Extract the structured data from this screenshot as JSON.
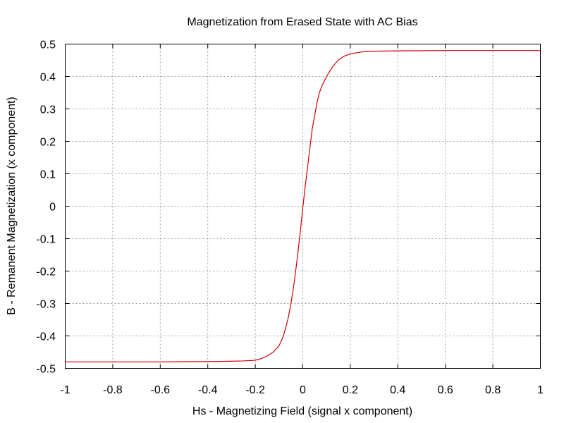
{
  "chart_data": {
    "type": "line",
    "title": "Magnetization from Erased State with AC Bias",
    "xlabel": "Hs - Magnetizing Field (signal x component)",
    "ylabel": "B - Remanent Magnetization (x component)",
    "xlim": [
      -1,
      1
    ],
    "ylim": [
      -0.5,
      0.5
    ],
    "xticks": [
      "-1",
      "-0.8",
      "-0.6",
      "-0.4",
      "-0.2",
      "0",
      "0.2",
      "0.4",
      "0.6",
      "0.8",
      "1"
    ],
    "yticks": [
      "-0.5",
      "-0.4",
      "-0.3",
      "-0.2",
      "-0.1",
      "0",
      "0.1",
      "0.2",
      "0.3",
      "0.4",
      "0.5"
    ],
    "grid": true,
    "legend": "none",
    "series": [
      {
        "color": "#cc0000",
        "x": [
          -1,
          -0.8,
          -0.6,
          -0.4,
          -0.3,
          -0.25,
          -0.2,
          -0.175,
          -0.15,
          -0.125,
          -0.1,
          -0.09,
          -0.08,
          -0.07,
          -0.06,
          -0.05,
          -0.04,
          -0.03,
          -0.02,
          -0.01,
          0,
          0.01,
          0.02,
          0.03,
          0.04,
          0.05,
          0.06,
          0.07,
          0.08,
          0.09,
          0.1,
          0.125,
          0.15,
          0.175,
          0.2,
          0.25,
          0.3,
          0.4,
          0.6,
          0.8,
          1
        ],
        "y": [
          -0.48,
          -0.48,
          -0.48,
          -0.479,
          -0.478,
          -0.477,
          -0.475,
          -0.47,
          -0.462,
          -0.45,
          -0.43,
          -0.415,
          -0.395,
          -0.37,
          -0.34,
          -0.3,
          -0.255,
          -0.2,
          -0.14,
          -0.075,
          -0.005,
          0.06,
          0.12,
          0.18,
          0.24,
          0.28,
          0.32,
          0.35,
          0.37,
          0.385,
          0.4,
          0.43,
          0.451,
          0.463,
          0.47,
          0.476,
          0.478,
          0.479,
          0.48,
          0.48,
          0.48
        ]
      }
    ]
  }
}
